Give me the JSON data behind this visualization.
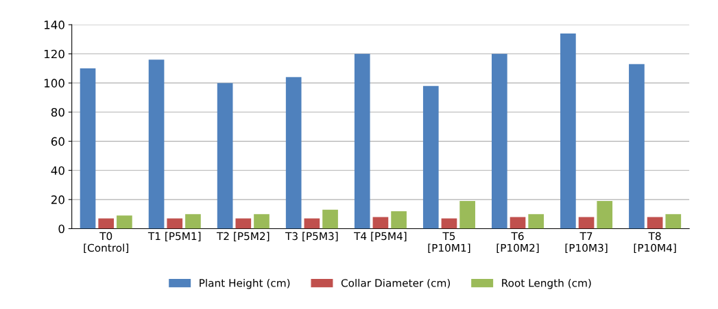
{
  "chart_data": {
    "type": "bar",
    "categories": [
      "T0\n[Control]",
      "T1 [P5M1]",
      "T2 [P5M2]",
      "T3 [P5M3]",
      "T4 [P5M4]",
      "T5\n[P10M1]",
      "T6\n[P10M2]",
      "T7\n[P10M3]",
      "T8\n[P10M4]"
    ],
    "series": [
      {
        "name": "Plant Height (cm)",
        "color": "#4f81bd",
        "values": [
          110,
          116,
          100,
          104,
          120,
          98,
          120,
          134,
          113
        ]
      },
      {
        "name": "Collar Diameter (cm)",
        "color": "#c0504d",
        "values": [
          7,
          7,
          7,
          7,
          8,
          7,
          8,
          8,
          8
        ]
      },
      {
        "name": "Root Length (cm)",
        "color": "#9bbb59",
        "values": [
          9,
          10,
          10,
          13,
          12,
          19,
          10,
          19,
          10
        ]
      }
    ],
    "ylim": [
      0,
      140
    ],
    "yticks": [
      0,
      20,
      40,
      60,
      80,
      100,
      120,
      140
    ],
    "grid": "y",
    "legend": "bottom"
  }
}
